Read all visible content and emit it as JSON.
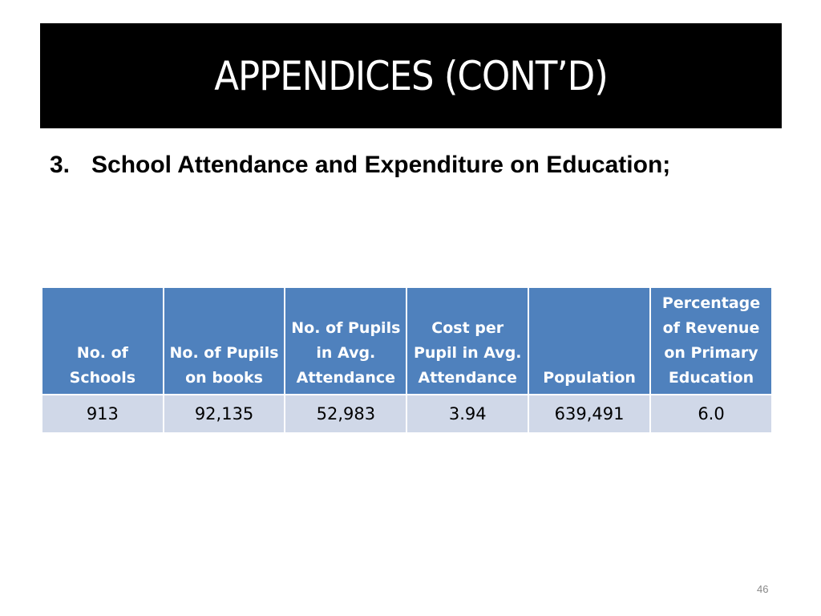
{
  "title": "APPENDICES (CONT’D)",
  "subtitle": {
    "number": "3.",
    "text": "School Attendance and Expenditure on Education;"
  },
  "table": {
    "headers": [
      "No. of Schools",
      "No. of Pupils on books",
      "No. of Pupils in Avg. Attendance",
      "Cost per Pupil in Avg. Attendance",
      "Population",
      "Percentage of Revenue on Primary Education"
    ],
    "rows": [
      [
        "913",
        "92,135",
        "52,983",
        "3.94",
        "639,491",
        "6.0"
      ]
    ]
  },
  "page_number": "46"
}
